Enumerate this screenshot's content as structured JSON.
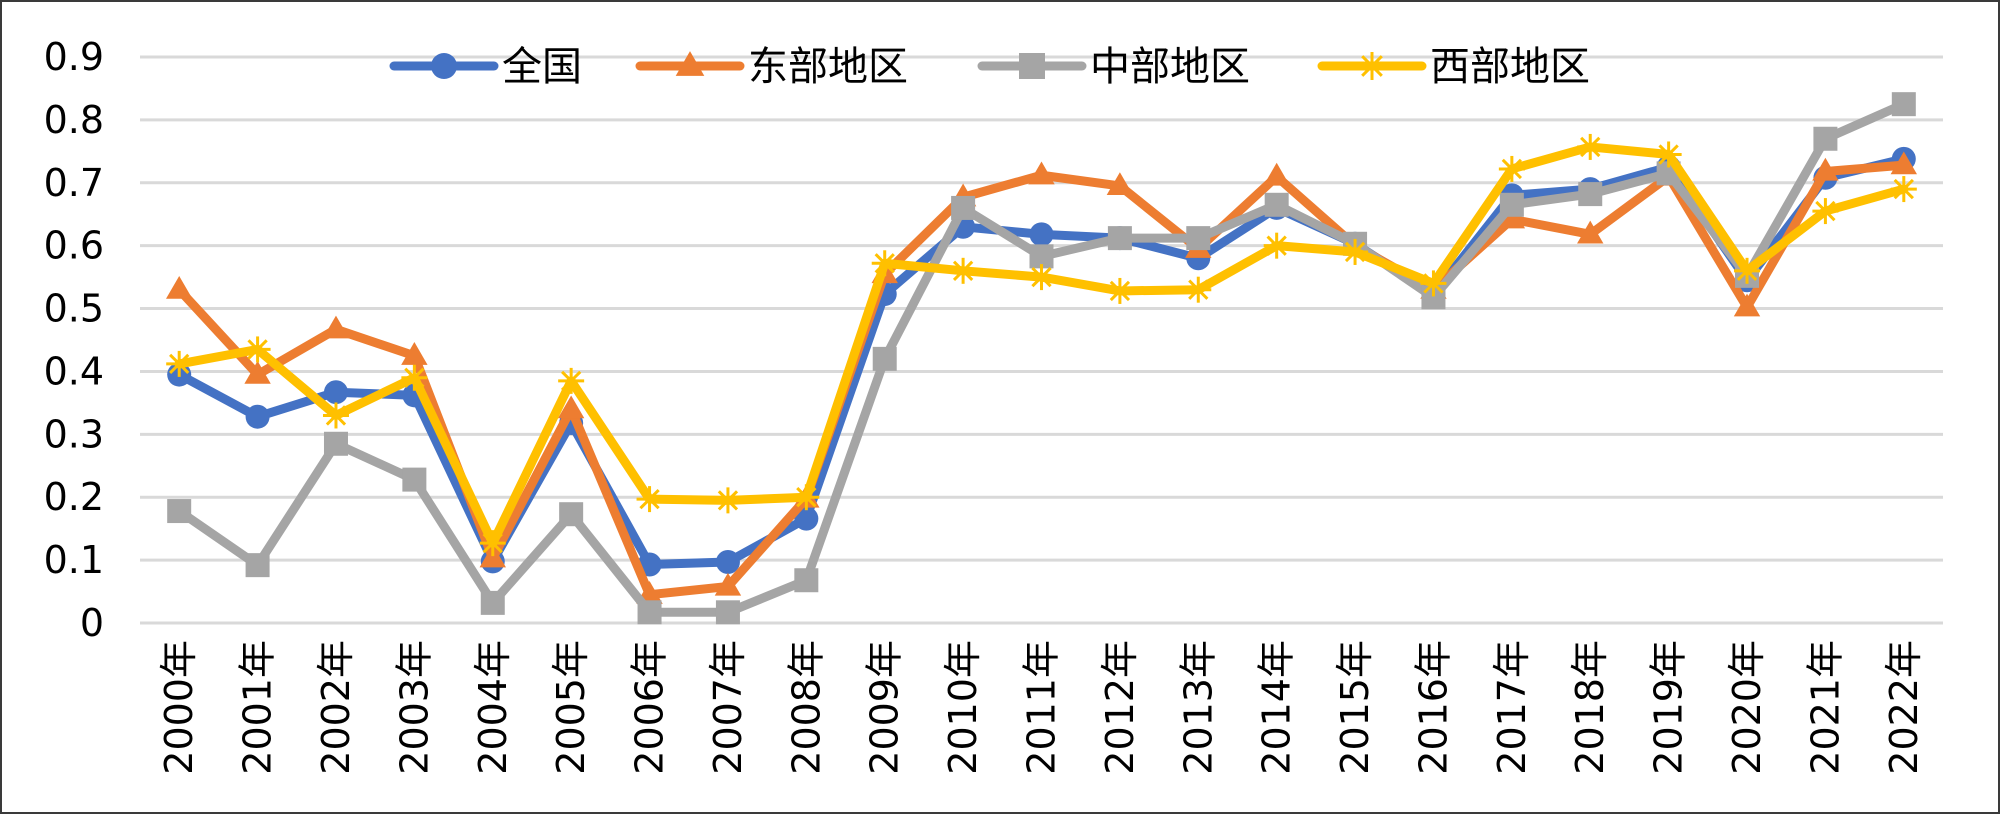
{
  "chart_data": {
    "type": "line",
    "title": "",
    "xlabel": "",
    "ylabel": "",
    "ylim": [
      0,
      0.9
    ],
    "yticks": [
      "0",
      "0.1",
      "0.2",
      "0.3",
      "0.4",
      "0.5",
      "0.6",
      "0.7",
      "0.8",
      "0.9"
    ],
    "grid": true,
    "legend_position": "top",
    "categories": [
      "2000年",
      "2001年",
      "2002年",
      "2003年",
      "2004年",
      "2005年",
      "2006年",
      "2007年",
      "2008年",
      "2009年",
      "2010年",
      "2011年",
      "2012年",
      "2013年",
      "2014年",
      "2015年",
      "2016年",
      "2017年",
      "2018年",
      "2019年",
      "2020年",
      "2021年",
      "2022年"
    ],
    "series": [
      {
        "name": "全国",
        "color": "#4472C4",
        "marker": "circle",
        "values": [
          0.395,
          0.328,
          0.367,
          0.362,
          0.098,
          0.318,
          0.093,
          0.097,
          0.166,
          0.523,
          0.63,
          0.618,
          0.612,
          0.58,
          0.66,
          0.603,
          0.522,
          0.68,
          0.69,
          0.725,
          0.545,
          0.708,
          0.738
        ]
      },
      {
        "name": "东部地区",
        "color": "#ED7D31",
        "marker": "triangle",
        "values": [
          0.53,
          0.395,
          0.467,
          0.425,
          0.103,
          0.34,
          0.045,
          0.058,
          0.198,
          0.555,
          0.677,
          0.712,
          0.695,
          0.595,
          0.71,
          0.6,
          0.53,
          0.642,
          0.618,
          0.71,
          0.502,
          0.718,
          0.728
        ]
      },
      {
        "name": "中部地区",
        "color": "#A5A5A5",
        "marker": "square",
        "values": [
          0.178,
          0.092,
          0.285,
          0.228,
          0.032,
          0.173,
          0.017,
          0.017,
          0.068,
          0.42,
          0.66,
          0.583,
          0.612,
          0.612,
          0.665,
          0.603,
          0.518,
          0.665,
          0.682,
          0.715,
          0.552,
          0.77,
          0.825
        ]
      },
      {
        "name": "西部地区",
        "color": "#FFC000",
        "marker": "star",
        "values": [
          0.412,
          0.435,
          0.33,
          0.39,
          0.127,
          0.385,
          0.197,
          0.195,
          0.2,
          0.572,
          0.56,
          0.55,
          0.528,
          0.53,
          0.6,
          0.59,
          0.54,
          0.722,
          0.757,
          0.745,
          0.56,
          0.655,
          0.69
        ]
      }
    ]
  }
}
